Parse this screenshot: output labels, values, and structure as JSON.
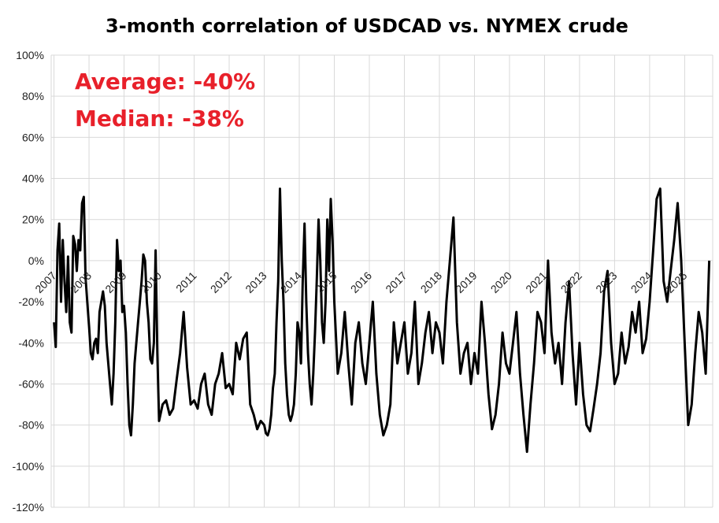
{
  "chart_data": {
    "type": "line",
    "title": "3-month correlation of USDCAD vs. NYMEX crude",
    "xlabel": "",
    "ylabel": "",
    "ylim": [
      -120,
      100
    ],
    "xlim": [
      2006.92,
      2025.8
    ],
    "grid": true,
    "legend": "none",
    "y_ticks": [
      "100%",
      "80%",
      "60%",
      "40%",
      "20%",
      "0%",
      "-20%",
      "-40%",
      "-60%",
      "-80%",
      "-100%",
      "-120%"
    ],
    "y_tick_values": [
      100,
      80,
      60,
      40,
      20,
      0,
      -20,
      -40,
      -60,
      -80,
      -100,
      -120
    ],
    "x_tick_labels": [
      "2007",
      "2008",
      "2009",
      "2010",
      "2011",
      "2012",
      "2013",
      "2014",
      "2015",
      "2016",
      "2017",
      "2018",
      "2019",
      "2020",
      "2021",
      "2022",
      "2023",
      "2024",
      "2025"
    ],
    "x_tick_values": [
      2007,
      2008,
      2009,
      2010,
      2011,
      2012,
      2013,
      2014,
      2015,
      2016,
      2017,
      2018,
      2019,
      2020,
      2021,
      2022,
      2023,
      2024,
      2025
    ],
    "annotations": [
      "Average: -40%",
      "Median: -38%"
    ],
    "annotation_color": "#e8202a",
    "line_color": "#000000",
    "series": [
      {
        "x": [
          2007.0,
          2007.05,
          2007.1,
          2007.15,
          2007.2,
          2007.25,
          2007.3,
          2007.35,
          2007.4,
          2007.45,
          2007.5,
          2007.55,
          2007.6,
          2007.65,
          2007.7,
          2007.75,
          2007.8,
          2007.85,
          2007.9,
          2007.95,
          2008.0,
          2008.05,
          2008.1,
          2008.15,
          2008.2,
          2008.25,
          2008.3,
          2008.35,
          2008.4,
          2008.45,
          2008.5,
          2008.55,
          2008.6,
          2008.65,
          2008.7,
          2008.75,
          2008.8,
          2008.85,
          2008.9,
          2008.95,
          2009.0,
          2009.05,
          2009.1,
          2009.15,
          2009.2,
          2009.25,
          2009.3,
          2009.35,
          2009.4,
          2009.45,
          2009.5,
          2009.55,
          2009.6,
          2009.65,
          2009.7,
          2009.75,
          2009.8,
          2009.85,
          2009.9,
          2009.95,
          2010.0,
          2010.1,
          2010.2,
          2010.3,
          2010.4,
          2010.5,
          2010.6,
          2010.7,
          2010.8,
          2010.9,
          2011.0,
          2011.1,
          2011.2,
          2011.3,
          2011.4,
          2011.5,
          2011.6,
          2011.7,
          2011.8,
          2011.9,
          2012.0,
          2012.1,
          2012.2,
          2012.3,
          2012.4,
          2012.5,
          2012.6,
          2012.7,
          2012.8,
          2012.9,
          2013.0,
          2013.05,
          2013.1,
          2013.15,
          2013.2,
          2013.25,
          2013.3,
          2013.35,
          2013.4,
          2013.45,
          2013.5,
          2013.55,
          2013.6,
          2013.65,
          2013.7,
          2013.75,
          2013.8,
          2013.85,
          2013.9,
          2013.95,
          2014.0,
          2014.05,
          2014.1,
          2014.15,
          2014.2,
          2014.25,
          2014.3,
          2014.35,
          2014.4,
          2014.45,
          2014.5,
          2014.55,
          2014.6,
          2014.65,
          2014.7,
          2014.75,
          2014.8,
          2014.85,
          2014.9,
          2014.95,
          2015.0,
          2015.1,
          2015.2,
          2015.3,
          2015.4,
          2015.5,
          2015.6,
          2015.7,
          2015.8,
          2015.9,
          2016.0,
          2016.1,
          2016.2,
          2016.3,
          2016.4,
          2016.5,
          2016.6,
          2016.7,
          2016.8,
          2016.9,
          2017.0,
          2017.1,
          2017.2,
          2017.3,
          2017.4,
          2017.5,
          2017.6,
          2017.7,
          2017.8,
          2017.9,
          2018.0,
          2018.1,
          2018.2,
          2018.3,
          2018.4,
          2018.5,
          2018.6,
          2018.7,
          2018.8,
          2018.9,
          2019.0,
          2019.1,
          2019.2,
          2019.3,
          2019.4,
          2019.5,
          2019.6,
          2019.7,
          2019.8,
          2019.9,
          2020.0,
          2020.1,
          2020.2,
          2020.3,
          2020.4,
          2020.5,
          2020.6,
          2020.7,
          2020.8,
          2020.9,
          2021.0,
          2021.1,
          2021.2,
          2021.3,
          2021.4,
          2021.5,
          2021.6,
          2021.7,
          2021.8,
          2021.9,
          2022.0,
          2022.1,
          2022.2,
          2022.3,
          2022.4,
          2022.5,
          2022.6,
          2022.7,
          2022.8,
          2022.9,
          2023.0,
          2023.1,
          2023.2,
          2023.3,
          2023.4,
          2023.5,
          2023.6,
          2023.7,
          2023.8,
          2023.9,
          2024.0,
          2024.1,
          2024.2,
          2024.3,
          2024.4,
          2024.5,
          2024.6,
          2024.7,
          2024.8,
          2024.9,
          2025.0,
          2025.1,
          2025.2,
          2025.3,
          2025.4,
          2025.5,
          2025.6,
          2025.7
        ],
        "y": [
          -30,
          -42,
          5,
          18,
          -20,
          10,
          -10,
          -25,
          2,
          -30,
          -35,
          12,
          8,
          -5,
          10,
          5,
          28,
          31,
          -8,
          -20,
          -32,
          -45,
          -48,
          -40,
          -38,
          -45,
          -25,
          -20,
          -15,
          -22,
          -40,
          -50,
          -60,
          -70,
          -55,
          -30,
          10,
          -5,
          0,
          -25,
          -22,
          -35,
          -60,
          -80,
          -85,
          -70,
          -50,
          -40,
          -30,
          -20,
          -10,
          3,
          0,
          -20,
          -30,
          -48,
          -50,
          -40,
          5,
          -45,
          -78,
          -70,
          -68,
          -75,
          -72,
          -58,
          -45,
          -25,
          -52,
          -70,
          -68,
          -72,
          -60,
          -55,
          -70,
          -75,
          -60,
          -55,
          -45,
          -62,
          -60,
          -65,
          -40,
          -48,
          -38,
          -35,
          -70,
          -75,
          -82,
          -78,
          -80,
          -84,
          -85,
          -82,
          -75,
          -62,
          -55,
          -30,
          -10,
          35,
          0,
          -20,
          -50,
          -65,
          -75,
          -78,
          -75,
          -70,
          -55,
          -30,
          -35,
          -50,
          -10,
          18,
          -20,
          -45,
          -60,
          -70,
          -55,
          -35,
          -10,
          20,
          0,
          -30,
          -40,
          -20,
          20,
          -5,
          30,
          10,
          -20,
          -55,
          -45,
          -25,
          -50,
          -70,
          -40,
          -30,
          -50,
          -60,
          -40,
          -20,
          -55,
          -75,
          -85,
          -80,
          -70,
          -30,
          -50,
          -40,
          -30,
          -55,
          -45,
          -20,
          -60,
          -50,
          -35,
          -25,
          -45,
          -30,
          -35,
          -50,
          -20,
          0,
          21,
          -30,
          -55,
          -45,
          -40,
          -60,
          -45,
          -55,
          -20,
          -40,
          -65,
          -82,
          -75,
          -60,
          -35,
          -50,
          -55,
          -40,
          -25,
          -55,
          -75,
          -93,
          -70,
          -50,
          -25,
          -30,
          -45,
          0,
          -35,
          -50,
          -40,
          -60,
          -30,
          -10,
          -45,
          -70,
          -40,
          -65,
          -80,
          -83,
          -72,
          -60,
          -45,
          -15,
          -5,
          -40,
          -60,
          -55,
          -35,
          -50,
          -42,
          -25,
          -35,
          -20,
          -45,
          -38,
          -20,
          5,
          30,
          35,
          -10,
          -20,
          -5,
          10,
          28,
          0,
          -40,
          -80,
          -70,
          -45,
          -25,
          -35,
          -55,
          0
        ]
      }
    ]
  }
}
